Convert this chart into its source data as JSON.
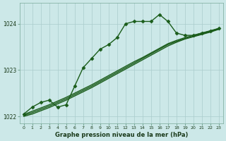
{
  "bg_color": "#cce8e8",
  "grid_color": "#aacccc",
  "line_color": "#1a5c1a",
  "ylim": [
    1021.85,
    1024.45
  ],
  "xlim": [
    -0.5,
    23.5
  ],
  "yticks": [
    1022,
    1023,
    1024
  ],
  "xticks": [
    0,
    1,
    2,
    3,
    4,
    5,
    6,
    7,
    8,
    9,
    10,
    11,
    12,
    13,
    14,
    15,
    16,
    17,
    18,
    19,
    20,
    21,
    22,
    23
  ],
  "xlabel": "Graphe pression niveau de la mer (hPa)",
  "lines": [
    {
      "x": [
        0,
        1,
        2,
        3,
        4,
        5,
        6,
        7,
        8,
        9,
        10,
        11,
        12,
        13,
        14,
        15,
        16,
        17,
        18,
        19,
        20,
        21,
        22,
        23
      ],
      "y": [
        1022.05,
        1022.2,
        1022.3,
        1022.35,
        1022.2,
        1022.25,
        1022.65,
        1023.05,
        1023.25,
        1023.45,
        1023.55,
        1023.7,
        1024.0,
        1024.05,
        1024.05,
        1024.05,
        1024.2,
        1024.05,
        1023.8,
        1023.75,
        1023.75,
        1023.8,
        1023.85,
        1023.9
      ],
      "marker": "D",
      "markersize": 2.5,
      "linewidth": 1.0
    },
    {
      "x": [
        0,
        1,
        2,
        3,
        4,
        5,
        6,
        7,
        8,
        9,
        10,
        11,
        12,
        13,
        14,
        15,
        16,
        17,
        18,
        19,
        20,
        21,
        22,
        23
      ],
      "y": [
        1022.0,
        1022.05,
        1022.12,
        1022.19,
        1022.27,
        1022.35,
        1022.44,
        1022.53,
        1022.62,
        1022.72,
        1022.82,
        1022.92,
        1023.02,
        1023.12,
        1023.22,
        1023.32,
        1023.42,
        1023.52,
        1023.6,
        1023.67,
        1023.72,
        1023.77,
        1023.82,
        1023.88
      ],
      "marker": null,
      "markersize": 0,
      "linewidth": 1.0
    },
    {
      "x": [
        0,
        1,
        2,
        3,
        4,
        5,
        6,
        7,
        8,
        9,
        10,
        11,
        12,
        13,
        14,
        15,
        16,
        17,
        18,
        19,
        20,
        21,
        22,
        23
      ],
      "y": [
        1022.02,
        1022.08,
        1022.15,
        1022.22,
        1022.3,
        1022.38,
        1022.47,
        1022.56,
        1022.65,
        1022.75,
        1022.85,
        1022.95,
        1023.05,
        1023.15,
        1023.25,
        1023.35,
        1023.45,
        1023.55,
        1023.62,
        1023.68,
        1023.73,
        1023.78,
        1023.83,
        1023.89
      ],
      "marker": null,
      "markersize": 0,
      "linewidth": 1.0
    },
    {
      "x": [
        0,
        1,
        2,
        3,
        4,
        5,
        6,
        7,
        8,
        9,
        10,
        11,
        12,
        13,
        14,
        15,
        16,
        17,
        18,
        19,
        20,
        21,
        22,
        23
      ],
      "y": [
        1022.04,
        1022.11,
        1022.18,
        1022.25,
        1022.33,
        1022.41,
        1022.5,
        1022.59,
        1022.68,
        1022.78,
        1022.88,
        1022.98,
        1023.08,
        1023.18,
        1023.27,
        1023.37,
        1023.47,
        1023.57,
        1023.64,
        1023.7,
        1023.75,
        1023.8,
        1023.84,
        1023.9
      ],
      "marker": null,
      "markersize": 0,
      "linewidth": 1.0
    }
  ]
}
